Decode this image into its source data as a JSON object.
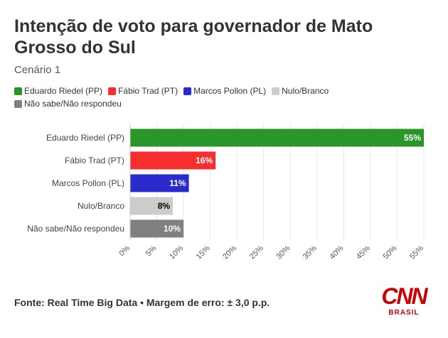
{
  "header": {
    "title": "Intenção de voto para governador de Mato Grosso do Sul",
    "subtitle": "Cenário 1"
  },
  "footer": {
    "source": "Fonte: Real Time Big Data • Margem de erro: ± 3,0 p.p."
  },
  "logo": {
    "main": "CNN",
    "sub": "BRASIL"
  },
  "chart_data": {
    "type": "bar",
    "orientation": "horizontal",
    "title": "Intenção de voto para governador de Mato Grosso do Sul",
    "subtitle": "Cenário 1",
    "xlabel": "",
    "ylabel": "",
    "xlim": [
      0,
      55
    ],
    "ticks": [
      0,
      5,
      10,
      15,
      20,
      25,
      30,
      35,
      40,
      45,
      50,
      55
    ],
    "tick_suffix": "%",
    "grid": true,
    "legend_position": "top-left",
    "categories": [
      "Eduardo Riedel (PP)",
      "Fábio Trad (PT)",
      "Marcos Pollon (PL)",
      "Nulo/Branco",
      "Não sabe/Não respondeu"
    ],
    "values": [
      55,
      16,
      11,
      8,
      10
    ],
    "labels": [
      "55%",
      "16%",
      "11%",
      "8%",
      "10%"
    ],
    "colors": [
      "#2a9628",
      "#f52e2e",
      "#2a2acf",
      "#cccccc",
      "#808080"
    ],
    "label_colors": [
      "#ffffff",
      "#ffffff",
      "#ffffff",
      "#000000",
      "#ffffff"
    ]
  }
}
